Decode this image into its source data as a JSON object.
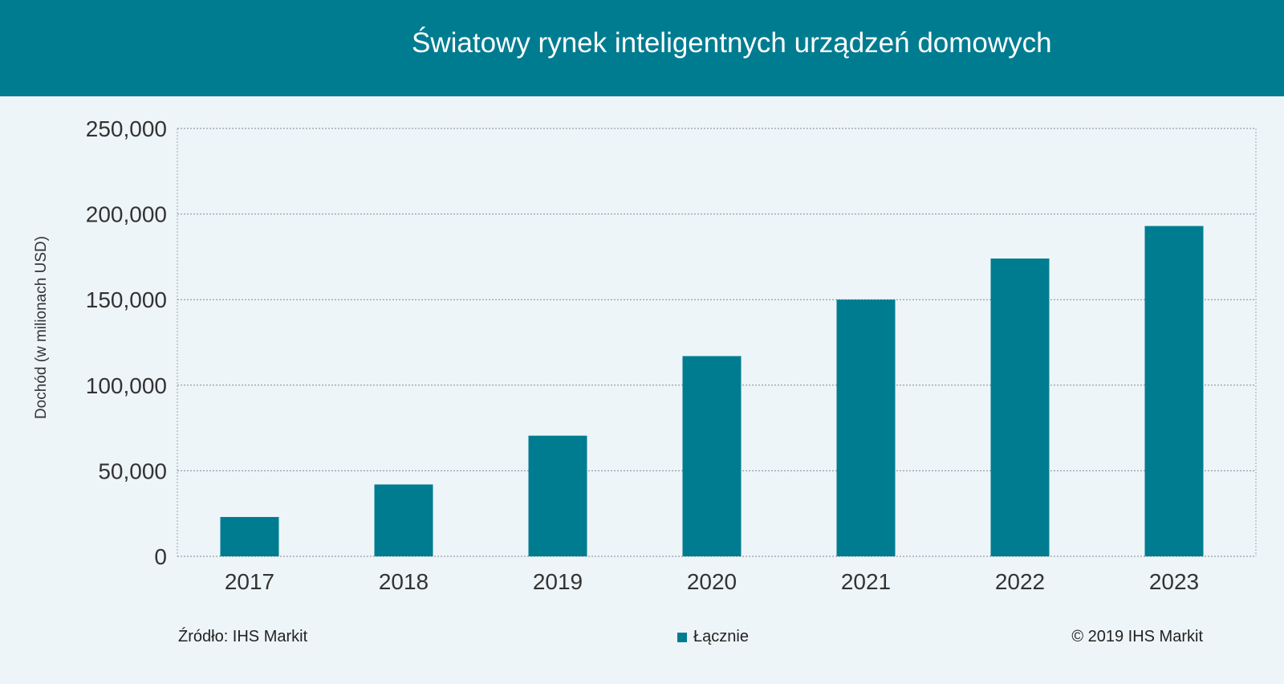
{
  "chart_data": {
    "type": "bar",
    "title": "Światowy rynek inteligentnych urządzeń domowych",
    "ylabel": "Dochód (w milionach USD)",
    "xlabel": "",
    "categories": [
      "2017",
      "2018",
      "2019",
      "2020",
      "2021",
      "2022",
      "2023"
    ],
    "series": [
      {
        "name": "Łącznie",
        "values": [
          23000,
          42000,
          70500,
          117000,
          150000,
          174000,
          193000
        ]
      }
    ],
    "ylim": [
      0,
      250000
    ],
    "yticks": [
      0,
      50000,
      100000,
      150000,
      200000,
      250000
    ],
    "ytick_labels": [
      "0",
      "50,000",
      "100,000",
      "150,000",
      "200,000",
      "250,000"
    ],
    "grid": true,
    "legend_position": "bottom-center",
    "colors": {
      "bar": "#007c91",
      "header": "#007c91",
      "background": "#eef5f8"
    }
  },
  "footer": {
    "source": "Źródło: IHS Markit",
    "copyright": "© 2019 IHS Markit"
  }
}
